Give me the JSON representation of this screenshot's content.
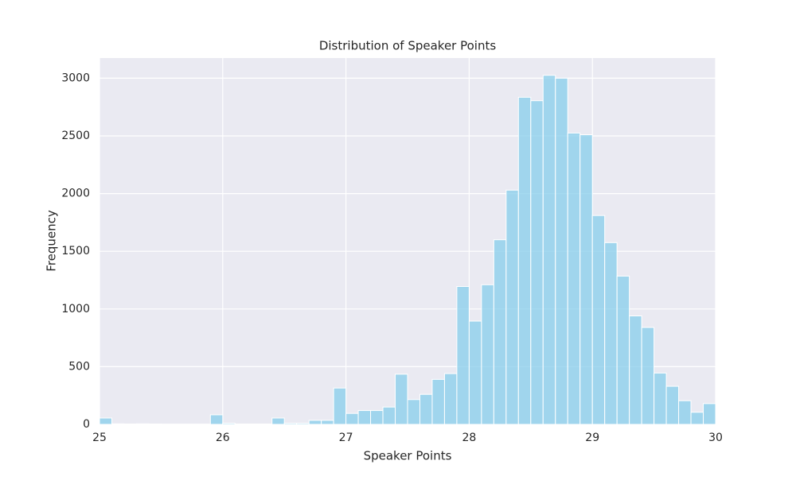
{
  "chart_data": {
    "type": "histogram",
    "title": "Distribution of Speaker Points",
    "x_label": "Speaker Points",
    "y_label": "Frequency",
    "bins": [
      25,
      25.1,
      25.2,
      25.3,
      25.4,
      25.5,
      25.6,
      25.7,
      25.8,
      25.9,
      26,
      26.1,
      26.2,
      26.3,
      26.4,
      26.5,
      26.6,
      26.7,
      26.8,
      26.9,
      27,
      27.1,
      27.2,
      27.3,
      27.4,
      27.5,
      27.6,
      27.7,
      27.8,
      27.9,
      28,
      28.1,
      28.2,
      28.3,
      28.4,
      28.5,
      28.6,
      28.7,
      28.8,
      28.9,
      29,
      29.1,
      29.2,
      29.3,
      29.4,
      29.5,
      29.6,
      29.7,
      29.8,
      29.9,
      30
    ],
    "values": [
      55,
      5,
      3,
      5,
      3,
      2,
      2,
      2,
      2,
      83,
      10,
      3,
      3,
      3,
      55,
      10,
      10,
      35,
      35,
      315,
      95,
      120,
      120,
      150,
      435,
      215,
      260,
      390,
      440,
      1195,
      895,
      1210,
      1600,
      2030,
      2835,
      2805,
      3025,
      3000,
      2525,
      2510,
      1810,
      1575,
      1285,
      940,
      840,
      445,
      330,
      205,
      105,
      180
    ],
    "color": "#87ceeb",
    "xlim": [
      25,
      30
    ],
    "xticks": [
      25,
      26,
      27,
      28,
      29,
      30
    ],
    "ylim": [
      0,
      3175
    ],
    "yticks": [
      0,
      500,
      1000,
      1500,
      2000,
      2500,
      3000
    ],
    "grid": true
  }
}
